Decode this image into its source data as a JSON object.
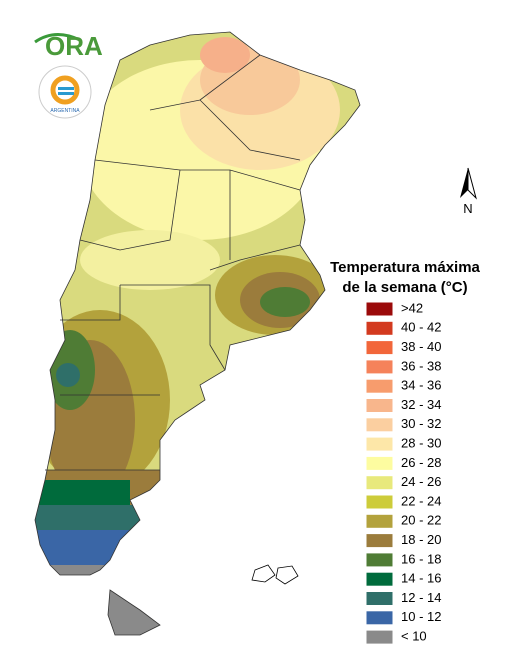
{
  "logo": {
    "name": "ORA",
    "seal": "ARGENTINA"
  },
  "north": "N",
  "legend": {
    "title": [
      "Temperatura máxima",
      "de la semana (°C)"
    ],
    "items": [
      {
        "label": ">42",
        "color": "#9b0a0a"
      },
      {
        "label": "40 - 42",
        "color": "#d33a1f"
      },
      {
        "label": "38 - 40",
        "color": "#f2663a"
      },
      {
        "label": "36 - 38",
        "color": "#f5825a"
      },
      {
        "label": "34 - 36",
        "color": "#f79c6d"
      },
      {
        "label": "32 - 34",
        "color": "#f8b68c"
      },
      {
        "label": "30 - 32",
        "color": "#fbcfa0"
      },
      {
        "label": "28 - 30",
        "color": "#fde7a8"
      },
      {
        "label": "26 - 28",
        "color": "#fdfca0"
      },
      {
        "label": "24 - 26",
        "color": "#e8e97c"
      },
      {
        "label": "22 - 24",
        "color": "#cdcc3a"
      },
      {
        "label": "20 - 22",
        "color": "#b3a23c"
      },
      {
        "label": "18 - 20",
        "color": "#9b7c3c"
      },
      {
        "label": "16 - 18",
        "color": "#4f7c35"
      },
      {
        "label": "14 - 16",
        "color": "#006b3c"
      },
      {
        "label": "12 - 14",
        "color": "#2f6f69"
      },
      {
        "label": "10 - 12",
        "color": "#3a66a6"
      },
      {
        "label": "< 10",
        "color": "#8a8a8a"
      }
    ]
  }
}
